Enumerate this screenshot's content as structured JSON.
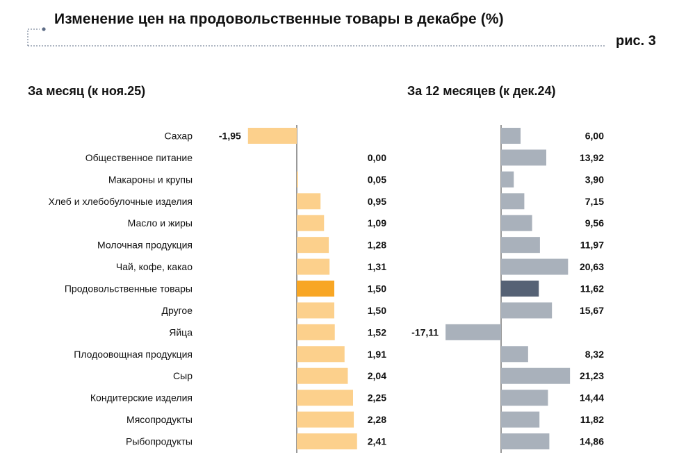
{
  "chart_data": {
    "type": "bar",
    "title": "Изменение цен на продовольственные товары в декабре (%)",
    "figure_label": "рис. 3",
    "categories": [
      "Сахар",
      "Общественное питание",
      "Макароны и крупы",
      "Хлеб и хлебобулочные изделия",
      "Масло и жиры",
      "Молочная продукция",
      "Чай, кофе, какао",
      "Продовольственные товары",
      "Другое",
      "Яйца",
      "Плодоовощная продукция",
      "Сыр",
      "Кондитерские изделия",
      "Мясопродукты",
      "Рыбопродукты"
    ],
    "highlight_category": "Продовольственные товары",
    "series": [
      {
        "name": "За месяц (к ноя.25)",
        "values": [
          -1.95,
          0.0,
          0.05,
          0.95,
          1.09,
          1.28,
          1.31,
          1.5,
          1.5,
          1.52,
          1.91,
          2.04,
          2.25,
          2.28,
          2.41
        ],
        "labels": [
          "-1,95",
          "0,00",
          "0,05",
          "0,95",
          "1,09",
          "1,28",
          "1,31",
          "1,50",
          "1,50",
          "1,52",
          "1,91",
          "2,04",
          "2,25",
          "2,28",
          "2,41"
        ],
        "color": "#FCD08C",
        "highlight_color": "#F8A624"
      },
      {
        "name": "За 12 месяцев (к дек.24)",
        "values": [
          6.0,
          13.92,
          3.9,
          7.15,
          9.56,
          11.97,
          20.63,
          11.62,
          15.67,
          -17.11,
          8.32,
          21.23,
          14.44,
          11.82,
          14.86
        ],
        "labels": [
          "6,00",
          "13,92",
          "3,90",
          "7,15",
          "9,56",
          "11,97",
          "20,63",
          "11,62",
          "15,67",
          "-17,11",
          "8,32",
          "21,23",
          "14,44",
          "11,82",
          "14,86"
        ],
        "color": "#A9B1BB",
        "highlight_color": "#566275"
      }
    ],
    "decor_color": "#5D6C86",
    "axis_color": "#333333"
  }
}
